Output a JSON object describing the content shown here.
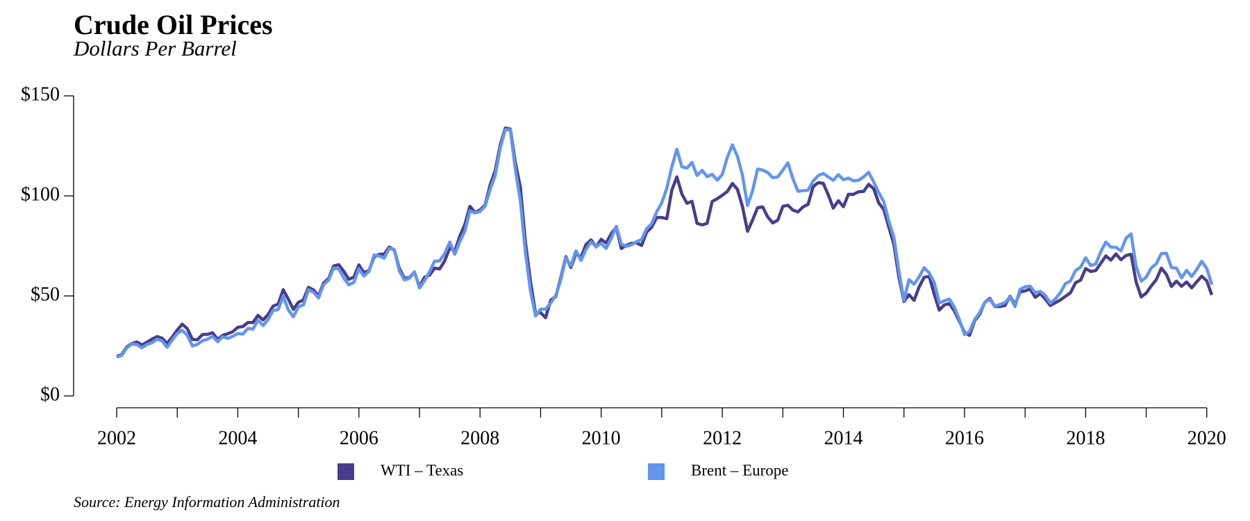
{
  "chart_data": {
    "type": "line",
    "title": "Crude Oil Prices",
    "subtitle": "Dollars Per Barrel",
    "source": "Source: Energy Information Administration",
    "legend": "bottom",
    "xlim": [
      2002,
      2020.083
    ],
    "ylim": [
      0,
      150
    ],
    "yticks": [
      {
        "value": 0,
        "label": "$0"
      },
      {
        "value": 50,
        "label": "$50"
      },
      {
        "value": 100,
        "label": "$100"
      },
      {
        "value": 150,
        "label": "$150"
      }
    ],
    "xticks": [
      2002,
      2004,
      2006,
      2008,
      2010,
      2012,
      2014,
      2016,
      2018,
      2020
    ],
    "xticks_minor": [
      2003,
      2005,
      2007,
      2009,
      2011,
      2013,
      2015,
      2017,
      2019
    ],
    "x": [
      2002,
      2002.083,
      2002.167,
      2002.25,
      2002.333,
      2002.417,
      2002.5,
      2002.583,
      2002.667,
      2002.75,
      2002.833,
      2002.917,
      2003,
      2003.083,
      2003.167,
      2003.25,
      2003.333,
      2003.417,
      2003.5,
      2003.583,
      2003.667,
      2003.75,
      2003.833,
      2003.917,
      2004,
      2004.083,
      2004.167,
      2004.25,
      2004.333,
      2004.417,
      2004.5,
      2004.583,
      2004.667,
      2004.75,
      2004.833,
      2004.917,
      2005,
      2005.083,
      2005.167,
      2005.25,
      2005.333,
      2005.417,
      2005.5,
      2005.583,
      2005.667,
      2005.75,
      2005.833,
      2005.917,
      2006,
      2006.083,
      2006.167,
      2006.25,
      2006.333,
      2006.417,
      2006.5,
      2006.583,
      2006.667,
      2006.75,
      2006.833,
      2006.917,
      2007,
      2007.083,
      2007.167,
      2007.25,
      2007.333,
      2007.417,
      2007.5,
      2007.583,
      2007.667,
      2007.75,
      2007.833,
      2007.917,
      2008,
      2008.083,
      2008.167,
      2008.25,
      2008.333,
      2008.417,
      2008.5,
      2008.583,
      2008.667,
      2008.75,
      2008.833,
      2008.917,
      2009,
      2009.083,
      2009.167,
      2009.25,
      2009.333,
      2009.417,
      2009.5,
      2009.583,
      2009.667,
      2009.75,
      2009.833,
      2009.917,
      2010,
      2010.083,
      2010.167,
      2010.25,
      2010.333,
      2010.417,
      2010.5,
      2010.583,
      2010.667,
      2010.75,
      2010.833,
      2010.917,
      2011,
      2011.083,
      2011.167,
      2011.25,
      2011.333,
      2011.417,
      2011.5,
      2011.583,
      2011.667,
      2011.75,
      2011.833,
      2011.917,
      2012,
      2012.083,
      2012.167,
      2012.25,
      2012.333,
      2012.417,
      2012.5,
      2012.583,
      2012.667,
      2012.75,
      2012.833,
      2012.917,
      2013,
      2013.083,
      2013.167,
      2013.25,
      2013.333,
      2013.417,
      2013.5,
      2013.583,
      2013.667,
      2013.75,
      2013.833,
      2013.917,
      2014,
      2014.083,
      2014.167,
      2014.25,
      2014.333,
      2014.417,
      2014.5,
      2014.583,
      2014.667,
      2014.75,
      2014.833,
      2014.917,
      2015,
      2015.083,
      2015.167,
      2015.25,
      2015.333,
      2015.417,
      2015.5,
      2015.583,
      2015.667,
      2015.75,
      2015.833,
      2015.917,
      2016,
      2016.083,
      2016.167,
      2016.25,
      2016.333,
      2016.417,
      2016.5,
      2016.583,
      2016.667,
      2016.75,
      2016.833,
      2016.917,
      2017,
      2017.083,
      2017.167,
      2017.25,
      2017.333,
      2017.417,
      2017.5,
      2017.583,
      2017.667,
      2017.75,
      2017.833,
      2017.917,
      2018,
      2018.083,
      2018.167,
      2018.25,
      2018.333,
      2018.417,
      2018.5,
      2018.583,
      2018.667,
      2018.75,
      2018.833,
      2018.917,
      2019,
      2019.083,
      2019.167,
      2019.25,
      2019.333,
      2019.417,
      2019.5,
      2019.583,
      2019.667,
      2019.75,
      2019.833,
      2019.917,
      2020,
      2020.083
    ],
    "series": [
      {
        "name": "WTI – Texas",
        "color": "#483d8b",
        "values": [
          19.7,
          20.7,
          24.5,
          26.2,
          27.0,
          25.5,
          26.9,
          28.4,
          29.7,
          28.9,
          26.3,
          29.4,
          32.9,
          35.9,
          33.6,
          28.3,
          28.1,
          30.7,
          30.8,
          31.6,
          28.3,
          30.3,
          31.1,
          32.1,
          34.3,
          34.7,
          36.7,
          36.7,
          40.3,
          38.0,
          40.7,
          44.9,
          45.9,
          53.1,
          48.5,
          43.3,
          46.8,
          48.0,
          54.3,
          53.0,
          50.0,
          56.5,
          58.7,
          65.0,
          65.6,
          62.3,
          58.3,
          59.4,
          65.5,
          61.6,
          62.7,
          69.4,
          70.8,
          70.9,
          74.4,
          73.0,
          63.8,
          58.9,
          59.1,
          62.0,
          54.5,
          59.3,
          60.4,
          63.9,
          63.5,
          67.5,
          74.1,
          72.4,
          79.9,
          85.8,
          94.8,
          91.7,
          93.0,
          95.4,
          105.5,
          112.6,
          125.4,
          133.9,
          133.4,
          116.7,
          104.1,
          76.6,
          57.3,
          41.1,
          41.7,
          39.1,
          47.9,
          49.7,
          59.0,
          69.6,
          64.2,
          71.1,
          69.4,
          75.7,
          78.0,
          74.5,
          78.3,
          76.4,
          81.2,
          84.3,
          73.7,
          75.3,
          76.3,
          76.6,
          75.2,
          81.9,
          84.3,
          89.2,
          89.2,
          88.6,
          102.9,
          109.5,
          100.9,
          96.3,
          97.3,
          86.3,
          85.5,
          86.3,
          97.2,
          98.6,
          100.3,
          102.2,
          106.2,
          103.3,
          94.7,
          82.3,
          87.9,
          94.1,
          94.5,
          89.5,
          86.5,
          87.9,
          94.8,
          95.3,
          92.9,
          92.0,
          94.5,
          95.8,
          104.6,
          106.6,
          106.3,
          100.5,
          93.9,
          97.6,
          94.6,
          100.8,
          100.8,
          102.1,
          102.2,
          105.8,
          103.6,
          96.5,
          93.2,
          84.4,
          75.8,
          59.3,
          47.2,
          50.6,
          47.8,
          54.5,
          59.3,
          59.8,
          50.9,
          42.9,
          45.5,
          46.2,
          42.4,
          37.2,
          31.7,
          30.3,
          37.6,
          40.8,
          46.7,
          48.8,
          44.7,
          44.7,
          45.2,
          49.8,
          45.7,
          52.0,
          52.5,
          53.5,
          49.3,
          51.1,
          48.5,
          45.2,
          46.6,
          48.0,
          49.8,
          51.6,
          56.6,
          57.9,
          63.7,
          62.2,
          62.7,
          66.3,
          70.0,
          67.9,
          71.0,
          68.1,
          70.2,
          70.8,
          57.0,
          49.5,
          51.4,
          55.0,
          58.2,
          63.9,
          60.8,
          54.7,
          57.4,
          54.8,
          57.0,
          54.0,
          57.0,
          59.9,
          57.5,
          50.5
        ]
      },
      {
        "name": "Brent – Europe",
        "color": "#6495ed",
        "values": [
          19.4,
          20.3,
          24.0,
          26.0,
          25.7,
          24.1,
          25.7,
          26.6,
          28.4,
          27.5,
          24.3,
          28.0,
          31.2,
          32.8,
          30.3,
          25.0,
          25.8,
          27.6,
          28.4,
          29.8,
          27.1,
          29.6,
          28.8,
          29.8,
          31.2,
          30.9,
          33.8,
          33.4,
          37.9,
          35.2,
          38.2,
          42.7,
          43.2,
          49.8,
          43.1,
          39.6,
          44.5,
          45.5,
          53.1,
          51.9,
          49.0,
          55.6,
          57.9,
          63.9,
          63.5,
          59.0,
          55.5,
          56.8,
          63.6,
          59.9,
          62.3,
          70.4,
          70.0,
          68.9,
          73.7,
          73.2,
          62.5,
          58.0,
          58.8,
          62.0,
          54.0,
          57.6,
          62.1,
          67.4,
          67.5,
          71.3,
          76.9,
          70.8,
          77.2,
          82.4,
          92.5,
          91.5,
          92.2,
          94.8,
          103.3,
          110.2,
          123.9,
          133.1,
          133.0,
          113.2,
          97.2,
          71.6,
          52.5,
          40.0,
          43.4,
          43.3,
          46.5,
          50.2,
          58.0,
          69.1,
          65.0,
          72.5,
          67.7,
          73.2,
          77.0,
          74.7,
          76.2,
          73.8,
          78.8,
          84.8,
          75.9,
          74.8,
          75.6,
          77.1,
          78.2,
          83.5,
          86.1,
          92.0,
          96.5,
          103.7,
          114.6,
          123.3,
          114.5,
          113.9,
          116.7,
          110.2,
          112.8,
          109.6,
          110.8,
          107.9,
          110.7,
          119.3,
          125.5,
          119.8,
          110.3,
          95.2,
          102.6,
          113.4,
          112.9,
          111.7,
          109.1,
          109.5,
          112.9,
          116.5,
          108.5,
          102.3,
          102.6,
          102.9,
          107.4,
          110.1,
          111.2,
          109.5,
          107.8,
          110.6,
          108.1,
          108.9,
          107.5,
          107.8,
          109.5,
          111.8,
          107.0,
          101.6,
          97.1,
          87.4,
          79.4,
          62.3,
          47.8,
          58.1,
          55.9,
          59.5,
          64.1,
          61.5,
          56.6,
          46.5,
          47.6,
          48.4,
          44.3,
          38.0,
          30.7,
          32.2,
          38.2,
          41.6,
          46.7,
          48.3,
          44.9,
          45.7,
          46.6,
          49.5,
          44.7,
          53.3,
          54.6,
          54.9,
          51.6,
          52.3,
          50.3,
          46.4,
          48.5,
          51.7,
          56.2,
          57.5,
          62.7,
          64.4,
          69.1,
          65.2,
          66.0,
          72.1,
          76.9,
          74.4,
          74.3,
          72.5,
          78.9,
          81.0,
          64.8,
          57.4,
          59.4,
          64.0,
          66.1,
          71.2,
          71.3,
          64.2,
          63.9,
          59.0,
          62.8,
          59.7,
          63.2,
          67.3,
          63.7,
          55.7
        ]
      }
    ]
  }
}
